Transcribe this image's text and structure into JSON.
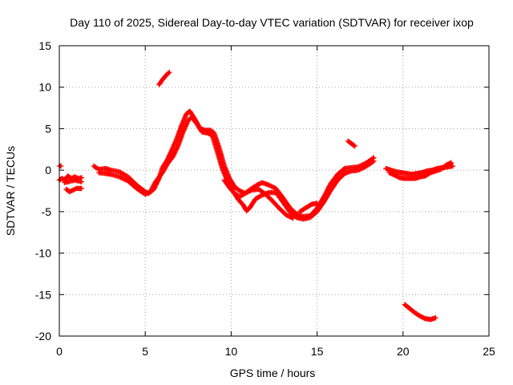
{
  "chart_data": {
    "type": "scatter",
    "title": "Day 110 of 2025, Sidereal Day-to-day VTEC variation (SDTVAR) for receiver ixop",
    "xlabel": "GPS time / hours",
    "ylabel": "SDTVAR / TECUs",
    "xlim": [
      0,
      25
    ],
    "ylim": [
      -20,
      15
    ],
    "xticks": [
      0,
      5,
      10,
      15,
      20,
      25
    ],
    "yticks": [
      15,
      10,
      5,
      0,
      -5,
      -10,
      -15,
      -20
    ],
    "xtick_labels": [
      "0",
      "5",
      "10",
      "15",
      "20",
      "25"
    ],
    "ytick_labels": [
      "15",
      "10",
      "5",
      "0",
      "-5",
      "-10",
      "-15",
      "-20"
    ],
    "grid": true,
    "marker": "+",
    "color": "#ff0000",
    "series": [
      {
        "name": "arc-a",
        "points": [
          [
            0.0,
            -1.2
          ],
          [
            0.15,
            -1.0
          ],
          [
            0.3,
            -1.2
          ],
          [
            0.5,
            -0.7
          ],
          [
            0.7,
            -1.0
          ],
          [
            0.9,
            -0.8
          ],
          [
            1.1,
            -1.0
          ],
          [
            1.3,
            -0.9
          ]
        ]
      },
      {
        "name": "arc-b",
        "points": [
          [
            0.3,
            -1.5
          ],
          [
            0.5,
            -1.4
          ],
          [
            0.7,
            -1.3
          ],
          [
            0.9,
            -1.2
          ],
          [
            1.1,
            -1.3
          ],
          [
            1.3,
            -1.4
          ]
        ]
      },
      {
        "name": "arc-c",
        "points": [
          [
            0.4,
            -2.3
          ],
          [
            0.6,
            -2.6
          ],
          [
            0.8,
            -2.4
          ],
          [
            1.0,
            -2.2
          ],
          [
            1.3,
            -2.2
          ]
        ]
      },
      {
        "name": "arc-d",
        "points": [
          [
            0.0,
            0.5
          ],
          [
            0.1,
            0.5
          ]
        ]
      },
      {
        "name": "arc-e",
        "points": [
          [
            2.0,
            0.5
          ],
          [
            2.3,
            0.1
          ],
          [
            2.7,
            0.2
          ],
          [
            3.0,
            0.0
          ],
          [
            3.5,
            -0.2
          ],
          [
            4.0,
            -0.8
          ],
          [
            4.5,
            -1.8
          ],
          [
            5.0,
            -2.6
          ],
          [
            5.2,
            -2.8
          ],
          [
            5.5,
            -2.3
          ],
          [
            5.8,
            -1.0
          ],
          [
            6.0,
            0.3
          ],
          [
            6.3,
            1.3
          ],
          [
            6.5,
            2.2
          ],
          [
            6.8,
            3.6
          ],
          [
            7.1,
            5.3
          ],
          [
            7.4,
            6.8
          ],
          [
            7.6,
            7.1
          ],
          [
            7.9,
            6.1
          ],
          [
            8.2,
            5.0
          ],
          [
            8.5,
            4.8
          ],
          [
            8.8,
            4.8
          ],
          [
            9.0,
            4.5
          ],
          [
            9.3,
            2.7
          ],
          [
            9.6,
            0.5
          ],
          [
            9.9,
            -1.0
          ],
          [
            10.2,
            -2.0
          ],
          [
            10.5,
            -2.5
          ],
          [
            10.8,
            -2.8
          ],
          [
            11.2,
            -2.2
          ],
          [
            11.5,
            -1.8
          ],
          [
            11.8,
            -1.5
          ],
          [
            12.2,
            -1.8
          ],
          [
            12.6,
            -2.2
          ],
          [
            13.0,
            -3.3
          ],
          [
            13.4,
            -4.5
          ],
          [
            13.8,
            -5.3
          ],
          [
            14.2,
            -5.6
          ],
          [
            14.6,
            -5.5
          ],
          [
            15.0,
            -4.6
          ],
          [
            15.4,
            -3.2
          ],
          [
            15.8,
            -1.6
          ],
          [
            16.2,
            -0.5
          ],
          [
            16.6,
            0.2
          ],
          [
            17.0,
            0.3
          ],
          [
            17.4,
            0.4
          ],
          [
            17.8,
            0.8
          ],
          [
            18.1,
            1.2
          ],
          [
            18.3,
            1.5
          ]
        ]
      },
      {
        "name": "arc-f",
        "points": [
          [
            2.3,
            -0.3
          ],
          [
            2.7,
            -0.4
          ],
          [
            3.0,
            -0.5
          ],
          [
            3.5,
            -0.8
          ],
          [
            4.0,
            -1.3
          ],
          [
            4.5,
            -2.2
          ],
          [
            5.0,
            -2.9
          ],
          [
            5.3,
            -2.6
          ],
          [
            5.6,
            -1.4
          ],
          [
            6.0,
            -0.3
          ],
          [
            6.3,
            0.8
          ],
          [
            6.6,
            1.6
          ],
          [
            6.9,
            2.9
          ],
          [
            7.2,
            4.6
          ],
          [
            7.5,
            6.0
          ],
          [
            7.7,
            6.4
          ],
          [
            8.0,
            5.6
          ],
          [
            8.3,
            4.6
          ],
          [
            8.6,
            4.5
          ],
          [
            8.9,
            4.2
          ],
          [
            9.2,
            2.2
          ],
          [
            9.5,
            0.1
          ],
          [
            9.8,
            -1.4
          ],
          [
            10.1,
            -2.5
          ],
          [
            10.4,
            -3.5
          ],
          [
            10.7,
            -4.2
          ],
          [
            10.9,
            -4.9
          ],
          [
            11.1,
            -4.5
          ],
          [
            11.4,
            -3.5
          ],
          [
            11.8,
            -3.0
          ],
          [
            12.2,
            -2.7
          ],
          [
            12.6,
            -2.7
          ],
          [
            13.0,
            -3.8
          ],
          [
            13.4,
            -5.0
          ],
          [
            13.8,
            -5.7
          ],
          [
            14.2,
            -5.9
          ],
          [
            14.6,
            -5.7
          ],
          [
            15.0,
            -5.0
          ],
          [
            15.4,
            -3.8
          ],
          [
            15.8,
            -2.4
          ],
          [
            16.2,
            -1.2
          ],
          [
            16.6,
            -0.4
          ],
          [
            17.0,
            -0.1
          ],
          [
            17.4,
            0.0
          ],
          [
            17.8,
            0.4
          ],
          [
            18.1,
            0.8
          ],
          [
            18.3,
            1.1
          ]
        ]
      },
      {
        "name": "arc-g",
        "points": [
          [
            9.6,
            -1.2
          ],
          [
            9.9,
            -2.1
          ],
          [
            10.2,
            -2.8
          ],
          [
            10.5,
            -3.2
          ],
          [
            10.8,
            -2.8
          ],
          [
            11.2,
            -2.4
          ],
          [
            11.6,
            -2.3
          ],
          [
            12.0,
            -2.9
          ],
          [
            12.4,
            -3.7
          ],
          [
            12.8,
            -4.6
          ],
          [
            13.2,
            -5.4
          ],
          [
            13.6,
            -5.8
          ]
        ]
      },
      {
        "name": "arc-h",
        "points": [
          [
            14.0,
            -5.0
          ],
          [
            14.3,
            -4.6
          ],
          [
            14.7,
            -4.1
          ],
          [
            15.0,
            -4.0
          ]
        ]
      },
      {
        "name": "arc-i",
        "points": [
          [
            5.8,
            10.3
          ],
          [
            6.0,
            10.9
          ],
          [
            6.2,
            11.4
          ],
          [
            6.4,
            11.8
          ]
        ]
      },
      {
        "name": "arc-j",
        "points": [
          [
            16.8,
            3.5
          ],
          [
            17.0,
            3.2
          ],
          [
            17.2,
            2.9
          ]
        ]
      },
      {
        "name": "arc-k",
        "points": [
          [
            19.0,
            0.2
          ],
          [
            19.3,
            0.0
          ],
          [
            19.6,
            -0.2
          ],
          [
            19.9,
            -0.3
          ],
          [
            20.2,
            -0.4
          ],
          [
            20.5,
            -0.5
          ],
          [
            20.8,
            -0.4
          ],
          [
            21.1,
            -0.3
          ],
          [
            21.4,
            -0.1
          ],
          [
            21.7,
            0.0
          ],
          [
            22.0,
            0.2
          ],
          [
            22.3,
            0.3
          ],
          [
            22.6,
            0.4
          ],
          [
            22.9,
            0.5
          ]
        ]
      },
      {
        "name": "arc-l",
        "points": [
          [
            19.2,
            -0.3
          ],
          [
            19.5,
            -0.6
          ],
          [
            19.8,
            -0.9
          ],
          [
            20.1,
            -1.0
          ],
          [
            20.4,
            -1.0
          ],
          [
            20.7,
            -1.0
          ],
          [
            21.0,
            -0.8
          ],
          [
            21.3,
            -0.7
          ],
          [
            21.6,
            -0.3
          ],
          [
            21.9,
            -0.1
          ],
          [
            22.2,
            0.1
          ],
          [
            22.5,
            0.6
          ],
          [
            22.8,
            0.9
          ]
        ]
      },
      {
        "name": "arc-m",
        "points": [
          [
            20.1,
            -16.2
          ],
          [
            20.4,
            -16.7
          ],
          [
            20.7,
            -17.2
          ],
          [
            21.0,
            -17.6
          ],
          [
            21.3,
            -17.9
          ],
          [
            21.6,
            -18.0
          ],
          [
            21.9,
            -17.8
          ]
        ]
      }
    ]
  }
}
